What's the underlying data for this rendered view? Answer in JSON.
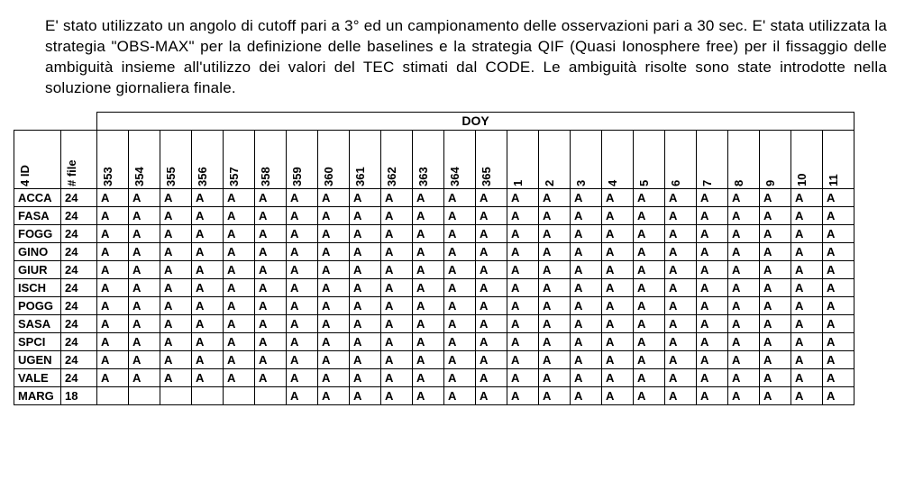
{
  "paragraph": "E' stato utilizzato un angolo di cutoff pari a 3° ed un campionamento delle osservazioni pari a 30 sec. E' stata utilizzata la strategia \"OBS-MAX\" per la definizione delle baselines e  la strategia QIF (Quasi Ionosphere free) per il fissaggio delle ambiguità insieme all'utilizzo dei valori del TEC stimati dal CODE.  Le ambiguità risolte sono state introdotte nella soluzione giornaliera finale.",
  "doy_label": "DOY",
  "col_id": "4 ID",
  "col_file": "# file",
  "days": [
    "353",
    "354",
    "355",
    "356",
    "357",
    "358",
    "359",
    "360",
    "361",
    "362",
    "363",
    "364",
    "365",
    "1",
    "2",
    "3",
    "4",
    "5",
    "6",
    "7",
    "8",
    "9",
    "10",
    "11"
  ],
  "rows": [
    {
      "id": "ACCA",
      "file": "24",
      "cells": [
        "A",
        "A",
        "A",
        "A",
        "A",
        "A",
        "A",
        "A",
        "A",
        "A",
        "A",
        "A",
        "A",
        "A",
        "A",
        "A",
        "A",
        "A",
        "A",
        "A",
        "A",
        "A",
        "A",
        "A"
      ]
    },
    {
      "id": "FASA",
      "file": "24",
      "cells": [
        "A",
        "A",
        "A",
        "A",
        "A",
        "A",
        "A",
        "A",
        "A",
        "A",
        "A",
        "A",
        "A",
        "A",
        "A",
        "A",
        "A",
        "A",
        "A",
        "A",
        "A",
        "A",
        "A",
        "A"
      ]
    },
    {
      "id": "FOGG",
      "file": "24",
      "cells": [
        "A",
        "A",
        "A",
        "A",
        "A",
        "A",
        "A",
        "A",
        "A",
        "A",
        "A",
        "A",
        "A",
        "A",
        "A",
        "A",
        "A",
        "A",
        "A",
        "A",
        "A",
        "A",
        "A",
        "A"
      ]
    },
    {
      "id": "GINO",
      "file": "24",
      "cells": [
        "A",
        "A",
        "A",
        "A",
        "A",
        "A",
        "A",
        "A",
        "A",
        "A",
        "A",
        "A",
        "A",
        "A",
        "A",
        "A",
        "A",
        "A",
        "A",
        "A",
        "A",
        "A",
        "A",
        "A"
      ]
    },
    {
      "id": "GIUR",
      "file": "24",
      "cells": [
        "A",
        "A",
        "A",
        "A",
        "A",
        "A",
        "A",
        "A",
        "A",
        "A",
        "A",
        "A",
        "A",
        "A",
        "A",
        "A",
        "A",
        "A",
        "A",
        "A",
        "A",
        "A",
        "A",
        "A"
      ]
    },
    {
      "id": "ISCH",
      "file": "24",
      "cells": [
        "A",
        "A",
        "A",
        "A",
        "A",
        "A",
        "A",
        "A",
        "A",
        "A",
        "A",
        "A",
        "A",
        "A",
        "A",
        "A",
        "A",
        "A",
        "A",
        "A",
        "A",
        "A",
        "A",
        "A"
      ]
    },
    {
      "id": "POGG",
      "file": "24",
      "cells": [
        "A",
        "A",
        "A",
        "A",
        "A",
        "A",
        "A",
        "A",
        "A",
        "A",
        "A",
        "A",
        "A",
        "A",
        "A",
        "A",
        "A",
        "A",
        "A",
        "A",
        "A",
        "A",
        "A",
        "A"
      ]
    },
    {
      "id": "SASA",
      "file": "24",
      "cells": [
        "A",
        "A",
        "A",
        "A",
        "A",
        "A",
        "A",
        "A",
        "A",
        "A",
        "A",
        "A",
        "A",
        "A",
        "A",
        "A",
        "A",
        "A",
        "A",
        "A",
        "A",
        "A",
        "A",
        "A"
      ]
    },
    {
      "id": "SPCI",
      "file": "24",
      "cells": [
        "A",
        "A",
        "A",
        "A",
        "A",
        "A",
        "A",
        "A",
        "A",
        "A",
        "A",
        "A",
        "A",
        "A",
        "A",
        "A",
        "A",
        "A",
        "A",
        "A",
        "A",
        "A",
        "A",
        "A"
      ]
    },
    {
      "id": "UGEN",
      "file": "24",
      "cells": [
        "A",
        "A",
        "A",
        "A",
        "A",
        "A",
        "A",
        "A",
        "A",
        "A",
        "A",
        "A",
        "A",
        "A",
        "A",
        "A",
        "A",
        "A",
        "A",
        "A",
        "A",
        "A",
        "A",
        "A"
      ]
    },
    {
      "id": "VALE",
      "file": "24",
      "cells": [
        "A",
        "A",
        "A",
        "A",
        "A",
        "A",
        "A",
        "A",
        "A",
        "A",
        "A",
        "A",
        "A",
        "A",
        "A",
        "A",
        "A",
        "A",
        "A",
        "A",
        "A",
        "A",
        "A",
        "A"
      ]
    },
    {
      "id": "MARG",
      "file": "18",
      "cells": [
        "",
        "",
        "",
        "",
        "",
        "",
        "A",
        "A",
        "A",
        "A",
        "A",
        "A",
        "A",
        "A",
        "A",
        "A",
        "A",
        "A",
        "A",
        "A",
        "A",
        "A",
        "A",
        "A"
      ]
    }
  ]
}
